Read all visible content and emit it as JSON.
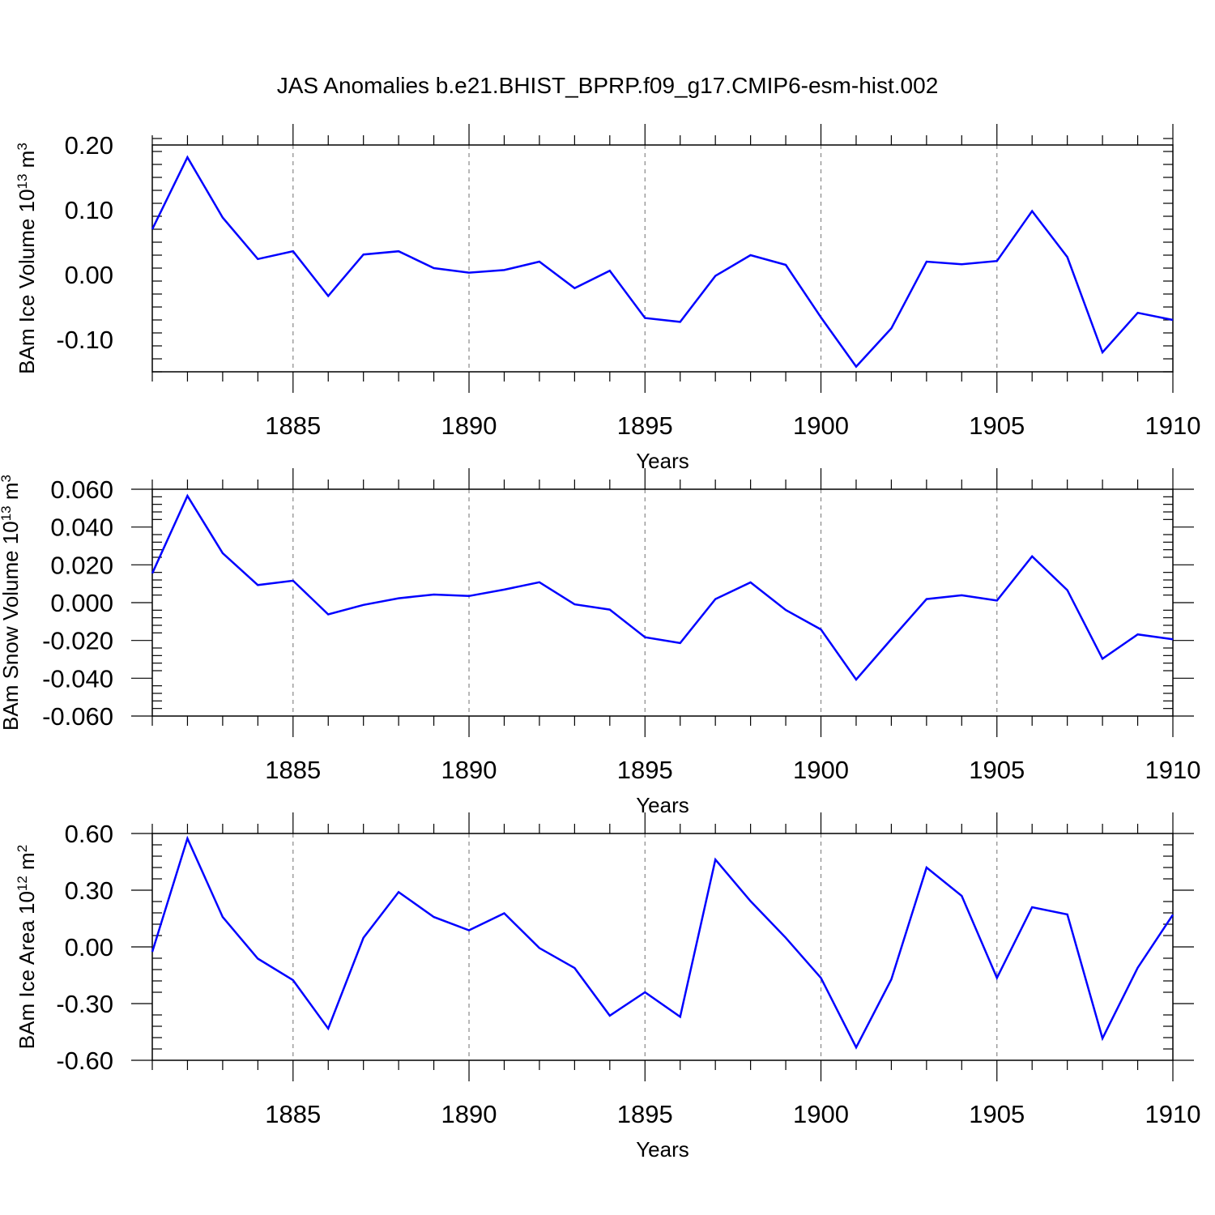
{
  "title": "JAS Anomalies b.e21.BHIST_BPRP.f09_g17.CMIP6-esm-hist.002",
  "line_color": "#0000ff",
  "chart_data": [
    {
      "type": "line",
      "title": "JAS Anomalies b.e21.BHIST_BPRP.f09_g17.CMIP6-esm-hist.002",
      "ylabel": {
        "text": "BAm Ice Volume 10",
        "exp": "13",
        "unit": " m",
        "unit_exp": "3"
      },
      "xlabel": "Years",
      "xlim": [
        1881,
        1910
      ],
      "ylim": [
        -0.15,
        0.2
      ],
      "yticks": [
        0.2,
        0.1,
        0.0,
        -0.1
      ],
      "yticklabels": [
        "0.20",
        "0.10",
        "0.00",
        "-0.10"
      ],
      "xticks": [
        1885,
        1890,
        1895,
        1900,
        1905,
        1910
      ],
      "xticklabels": [
        "1885",
        "1890",
        "1895",
        "1900",
        "1905",
        "1910"
      ],
      "grid": "vertical dashed at major x ticks",
      "series": [
        {
          "name": "BAm Ice Volume",
          "x": [
            1881,
            1882,
            1883,
            1884,
            1885,
            1886,
            1887,
            1888,
            1889,
            1890,
            1891,
            1892,
            1893,
            1894,
            1895,
            1896,
            1897,
            1898,
            1899,
            1900,
            1901,
            1902,
            1903,
            1904,
            1905,
            1906,
            1907,
            1908,
            1909,
            1910
          ],
          "values": [
            0.07,
            0.181,
            0.088,
            0.024,
            0.036,
            -0.033,
            0.031,
            0.036,
            0.01,
            0.003,
            0.007,
            0.02,
            -0.021,
            0.006,
            -0.067,
            -0.073,
            -0.002,
            0.03,
            0.015,
            -0.066,
            -0.142,
            -0.083,
            0.02,
            0.016,
            0.021,
            0.098,
            0.027,
            -0.12,
            -0.059,
            -0.07
          ]
        }
      ]
    },
    {
      "type": "line",
      "ylabel": {
        "text": "BAm Snow Volume 10",
        "exp": "13",
        "unit": " m",
        "unit_exp": "3"
      },
      "xlabel": "Years",
      "xlim": [
        1881,
        1910
      ],
      "ylim": [
        -0.06,
        0.06
      ],
      "yticks": [
        0.06,
        0.04,
        0.02,
        0.0,
        -0.02,
        -0.04,
        -0.06
      ],
      "yticklabels": [
        "0.060",
        "0.040",
        "0.020",
        "0.000",
        "-0.020",
        "-0.040",
        "-0.060"
      ],
      "xticks": [
        1885,
        1890,
        1895,
        1900,
        1905,
        1910
      ],
      "xticklabels": [
        "1885",
        "1890",
        "1895",
        "1900",
        "1905",
        "1910"
      ],
      "grid": "vertical dashed at major x ticks",
      "series": [
        {
          "name": "BAm Snow Volume",
          "x": [
            1881,
            1882,
            1883,
            1884,
            1885,
            1886,
            1887,
            1888,
            1889,
            1890,
            1891,
            1892,
            1893,
            1894,
            1895,
            1896,
            1897,
            1898,
            1899,
            1900,
            1901,
            1902,
            1903,
            1904,
            1905,
            1906,
            1907,
            1908,
            1909,
            1910
          ],
          "values": [
            0.0155,
            0.0565,
            0.0262,
            0.0093,
            0.0116,
            -0.0062,
            -0.0012,
            0.0023,
            0.0043,
            0.0035,
            0.0069,
            0.0108,
            -0.0009,
            -0.0037,
            -0.0183,
            -0.0214,
            0.0019,
            0.0107,
            -0.0039,
            -0.0142,
            -0.0407,
            -0.0193,
            0.0019,
            0.0039,
            0.0011,
            0.0245,
            0.0066,
            -0.0297,
            -0.0168,
            -0.0194
          ]
        }
      ]
    },
    {
      "type": "line",
      "ylabel": {
        "text": "BAm Ice Area 10",
        "exp": "12",
        "unit": " m",
        "unit_exp": "2"
      },
      "xlabel": "Years",
      "xlim": [
        1881,
        1910
      ],
      "ylim": [
        -0.6,
        0.6
      ],
      "yticks": [
        0.6,
        0.3,
        0.0,
        -0.3,
        -0.6
      ],
      "yticklabels": [
        "0.60",
        "0.30",
        "0.00",
        "-0.30",
        "-0.60"
      ],
      "xticks": [
        1885,
        1890,
        1895,
        1900,
        1905,
        1910
      ],
      "xticklabels": [
        "1885",
        "1890",
        "1895",
        "1900",
        "1905",
        "1910"
      ],
      "grid": "vertical dashed at major x ticks",
      "series": [
        {
          "name": "BAm Ice Area",
          "x": [
            1881,
            1882,
            1883,
            1884,
            1885,
            1886,
            1887,
            1888,
            1889,
            1890,
            1891,
            1892,
            1893,
            1894,
            1895,
            1896,
            1897,
            1898,
            1899,
            1900,
            1901,
            1902,
            1903,
            1904,
            1905,
            1906,
            1907,
            1908,
            1909,
            1910
          ],
          "values": [
            -0.026,
            0.574,
            0.158,
            -0.062,
            -0.176,
            -0.432,
            0.048,
            0.29,
            0.158,
            0.088,
            0.178,
            -0.006,
            -0.112,
            -0.364,
            -0.24,
            -0.37,
            0.462,
            0.242,
            0.048,
            -0.164,
            -0.532,
            -0.172,
            0.42,
            0.27,
            -0.164,
            0.21,
            0.172,
            -0.484,
            -0.11,
            0.17
          ]
        }
      ]
    }
  ]
}
